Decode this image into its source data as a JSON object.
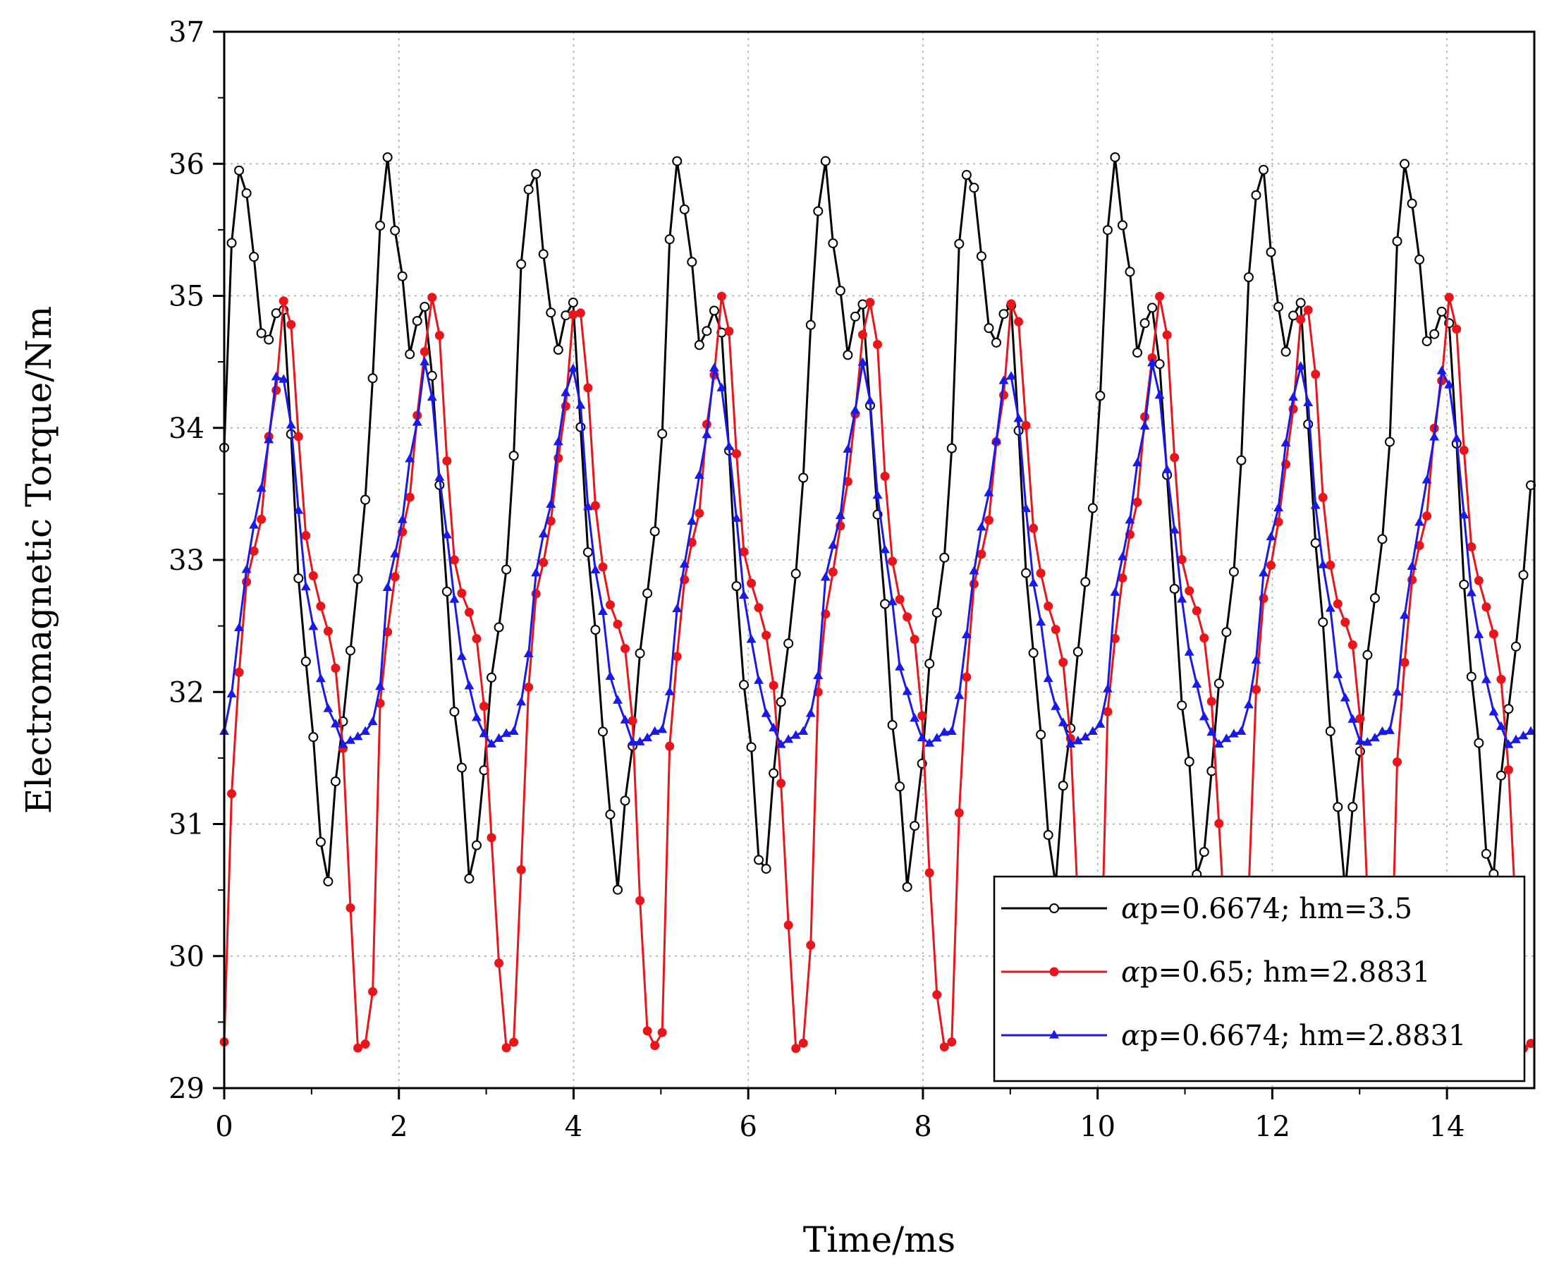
{
  "chart_data": {
    "type": "line",
    "title": "",
    "xlabel": "Time/ms",
    "ylabel": "Electromagnetic Torque/Nm",
    "xlim": [
      0,
      15
    ],
    "ylim": [
      29,
      37
    ],
    "xticks": [
      0,
      2,
      4,
      6,
      8,
      10,
      12,
      14
    ],
    "yticks": [
      29,
      30,
      31,
      32,
      33,
      34,
      35,
      36,
      37
    ],
    "grid": true,
    "legend_position": "bottom-right",
    "series": [
      {
        "name": "αp=0.6674;  hm=3.5",
        "label_prefix": "α",
        "label_rest": "p=0.6674;  hm=3.5",
        "color": "#000000",
        "marker": "open-circle",
        "period_ms": 1.667,
        "waveform_one_period": {
          "phase": [
            0.0,
            0.05,
            0.12,
            0.2,
            0.28,
            0.34,
            0.4,
            0.45,
            0.52,
            0.6,
            0.7,
            0.78,
            0.86,
            0.93,
            1.0
          ],
          "torque": [
            33.85,
            35.4,
            36.05,
            35.3,
            34.55,
            34.85,
            34.95,
            34.0,
            32.8,
            31.7,
            30.5,
            31.4,
            32.3,
            32.9,
            33.85
          ]
        }
      },
      {
        "name": "αp=0.65;  hm=2.8831",
        "label_prefix": "α",
        "label_rest": "p=0.65;  hm=2.8831",
        "color": "#e8151b",
        "marker": "filled-circle",
        "period_ms": 1.667,
        "waveform_one_period": {
          "phase": [
            0.0,
            0.08,
            0.16,
            0.25,
            0.33,
            0.42,
            0.48,
            0.52,
            0.58,
            0.66,
            0.74,
            0.8,
            0.86,
            0.92,
            1.0
          ],
          "torque": [
            29.35,
            32.0,
            32.85,
            33.3,
            34.1,
            35.0,
            34.7,
            33.8,
            33.0,
            32.65,
            32.4,
            31.8,
            30.4,
            29.3,
            29.35
          ]
        }
      },
      {
        "name": "αp=0.6674;  hm=2.8831",
        "label_prefix": "α",
        "label_rest": "p=0.6674;  hm=2.8831",
        "color": "#1a1ae6",
        "marker": "filled-triangle",
        "period_ms": 1.667,
        "waveform_one_period": {
          "phase": [
            0.0,
            0.06,
            0.14,
            0.22,
            0.3,
            0.38,
            0.44,
            0.5,
            0.58,
            0.66,
            0.74,
            0.82,
            0.9,
            0.96,
            1.0
          ],
          "torque": [
            31.7,
            32.0,
            32.9,
            33.3,
            33.9,
            34.5,
            34.2,
            33.4,
            32.7,
            32.1,
            31.8,
            31.6,
            31.65,
            31.7,
            31.7
          ]
        }
      }
    ]
  }
}
